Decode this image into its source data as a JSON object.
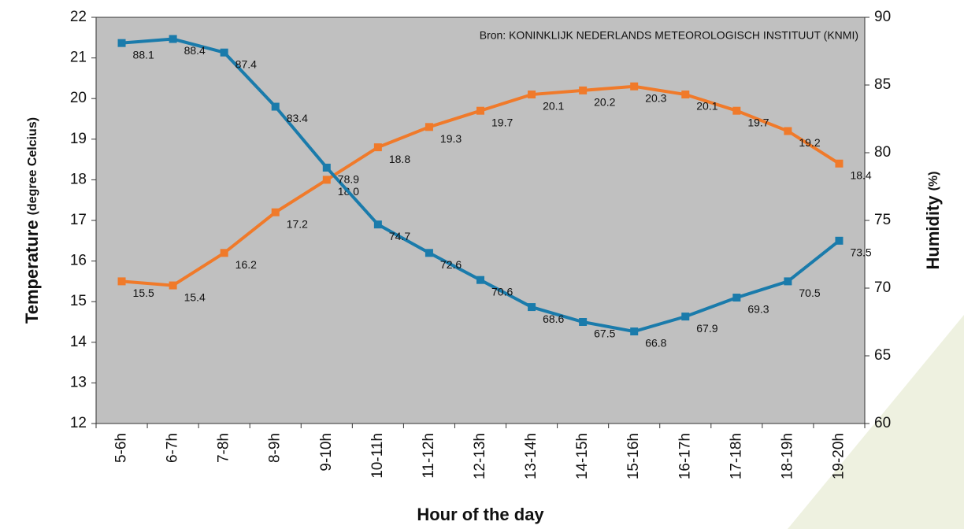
{
  "chart_data": {
    "type": "line",
    "annotation": "Bron: KONINKLIJK NEDERLANDS METEOROLOGISCH INSTITUUT (KNMI)",
    "x_label": "Hour of the day",
    "y_label": "Temperature",
    "y_label_unit": "(degree Celcius)",
    "y2_label": "Humidity",
    "y2_label_unit": "(%)",
    "categories": [
      "5-6h",
      "6-7h",
      "7-8h",
      "8-9h",
      "9-10h",
      "10-11h",
      "11-12h",
      "12-13h",
      "13-14h",
      "14-15h",
      "15-16h",
      "16-17h",
      "17-18h",
      "18-19h",
      "19-20h"
    ],
    "series": [
      {
        "name": "Temperature",
        "color": "#f07a2a",
        "axis": "y",
        "values": [
          15.5,
          15.4,
          16.2,
          17.2,
          18.0,
          18.8,
          19.3,
          19.7,
          20.1,
          20.2,
          20.3,
          20.1,
          19.7,
          19.2,
          18.4
        ],
        "value_labels": [
          "15.5",
          "15.4",
          "16.2",
          "17.2",
          "18.0",
          "18.8",
          "19.3",
          "19.7",
          "20.1",
          "20.2",
          "20.3",
          "20.1",
          "19.7",
          "19.2",
          "18.4"
        ]
      },
      {
        "name": "Humidity",
        "color": "#1a7bab",
        "axis": "y2",
        "values": [
          88.1,
          88.4,
          87.4,
          83.4,
          78.9,
          74.7,
          72.6,
          70.6,
          68.6,
          67.5,
          66.8,
          67.9,
          69.3,
          70.5,
          73.5
        ]
      }
    ],
    "ylim": [
      12,
      22
    ],
    "yticks": [
      12,
      13,
      14,
      15,
      16,
      17,
      18,
      19,
      20,
      21,
      22
    ],
    "y2lim": [
      60,
      90
    ],
    "y2ticks": [
      60,
      65,
      70,
      75,
      80,
      85,
      90
    ],
    "plot_background": "#c0c0c0"
  }
}
